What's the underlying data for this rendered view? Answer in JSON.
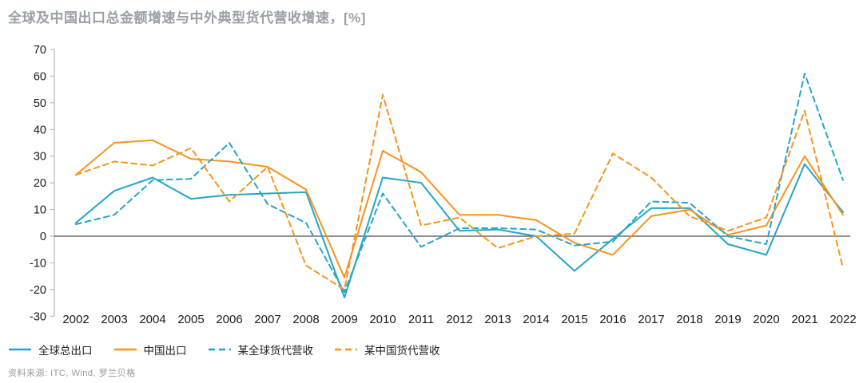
{
  "title": "全球及中国出口总金额增速与中外典型货代营收增速，[%]",
  "source": "资料来源: ITC, Wind, 罗兰贝格",
  "colors": {
    "teal": "#25A5C8",
    "orange": "#F7941E",
    "title_gray": "#9AA0A8",
    "axis_gray": "#AAAAAA",
    "zero_line": "#4D4D4D",
    "tick_text": "#1A1A1A",
    "source_gray": "#9A9A9A"
  },
  "chart_data": {
    "type": "line",
    "title": "全球及中国出口总金额增速与中外典型货代营收增速，[%]",
    "xlabel": "",
    "ylabel": "",
    "x": [
      2002,
      2003,
      2004,
      2005,
      2006,
      2007,
      2008,
      2009,
      2010,
      2011,
      2012,
      2013,
      2014,
      2015,
      2016,
      2017,
      2018,
      2019,
      2020,
      2021,
      2022
    ],
    "y_ticks": [
      70,
      60,
      50,
      40,
      30,
      20,
      10,
      0,
      -10,
      -20,
      -30
    ],
    "ylim": [
      -30,
      70
    ],
    "grid": false,
    "legend_position": "bottom-left",
    "series": [
      {
        "id": "global-exports",
        "name": "全球总出口",
        "color": "#25A5C8",
        "dashed": false,
        "values": [
          5,
          17,
          22,
          14,
          15.5,
          16,
          16.5,
          -23,
          22,
          20,
          2,
          2.5,
          0,
          -13,
          -1,
          10.5,
          10.5,
          -3,
          -7,
          27,
          9
        ]
      },
      {
        "id": "china-exports",
        "name": "中国出口",
        "color": "#F7941E",
        "dashed": false,
        "values": [
          23,
          35,
          36,
          29,
          28,
          26,
          17.5,
          -15.5,
          32,
          24,
          8,
          8,
          6,
          -2.5,
          -7,
          7.5,
          10,
          0.5,
          4,
          30,
          8
        ]
      },
      {
        "id": "global-forwarder-revenue",
        "name": "某全球货代营收",
        "color": "#25A5C8",
        "dashed": true,
        "values": [
          4.5,
          8,
          21,
          21.5,
          35,
          12,
          5,
          -21,
          16,
          -4,
          3,
          3,
          2.5,
          -3.5,
          -2,
          13,
          12.5,
          0,
          -3,
          61,
          21
        ]
      },
      {
        "id": "china-forwarder-revenue",
        "name": "某中国货代营收",
        "color": "#F7941E",
        "dashed": true,
        "values": [
          23,
          28,
          26.5,
          33,
          13,
          26,
          -11,
          -20,
          53,
          4,
          7,
          -4.5,
          0,
          1,
          31,
          22,
          7.5,
          2,
          7,
          47,
          -12
        ]
      }
    ]
  }
}
